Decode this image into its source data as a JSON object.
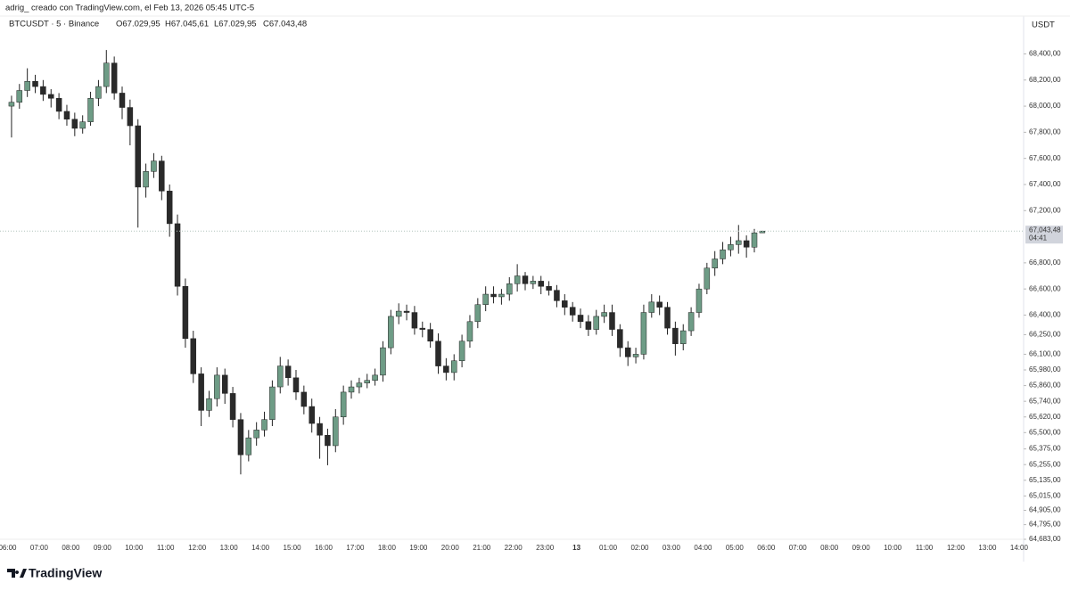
{
  "header": {
    "attribution": "adrig_ creado con TradingView.com, el Feb 13, 2026 05:45 UTC-5",
    "symbol": "BTCUSDT · 5 · Binance",
    "open": "O67.029,95",
    "high": "H67.045,61",
    "low": "L67.029,95",
    "close": "C67.043,48",
    "currency": "USDT",
    "last_price_label": "67,043,48",
    "countdown": "04:41",
    "logo": "TradingView"
  },
  "chart_data": {
    "type": "candlestick",
    "up_color": "#6e9c86",
    "down_color": "#2a2a2a",
    "wick_color": "#222222",
    "price_line_color": "#b0c4bb",
    "open": [
      68000,
      68030,
      68120,
      68190,
      68150,
      68090,
      68060,
      67960,
      67900,
      67830,
      67880,
      68060,
      68150,
      68330,
      68100,
      67990,
      67850,
      67380,
      67500,
      67580,
      67350,
      67100,
      66620,
      66220,
      65950,
      65670,
      65760,
      65940,
      65800,
      65600,
      65330,
      65460,
      65520,
      65600,
      65850,
      66010,
      65920,
      65810,
      65700,
      65570,
      65480,
      65400,
      65620,
      65810,
      65850,
      65880,
      65900,
      65940,
      66150,
      66390,
      66430,
      66420,
      66300,
      66290,
      66200,
      66010,
      65960,
      66050,
      66200,
      66350,
      66480,
      66560,
      66540,
      66560,
      66640,
      66700,
      66640,
      66660,
      66620,
      66590,
      66510,
      66460,
      66400,
      66350,
      66290,
      66390,
      66420,
      66290,
      66150,
      66080,
      66100,
      66420,
      66500,
      66460,
      66300,
      66180,
      66280,
      66420,
      66600,
      66760,
      66830,
      66900,
      66940,
      66970,
      66920,
      67029.95
    ],
    "high": [
      68080,
      68170,
      68290,
      68240,
      68200,
      68130,
      68100,
      68010,
      67950,
      67930,
      68110,
      68200,
      68430,
      68380,
      68150,
      68050,
      67900,
      67560,
      67640,
      67620,
      67400,
      67170,
      66680,
      66280,
      66000,
      65820,
      66000,
      65990,
      65850,
      65650,
      65520,
      65580,
      65660,
      65900,
      66080,
      66060,
      65980,
      65860,
      65760,
      65620,
      65530,
      65680,
      65860,
      65900,
      65920,
      65950,
      65990,
      66200,
      66440,
      66490,
      66480,
      66470,
      66350,
      66340,
      66260,
      66070,
      66100,
      66250,
      66400,
      66530,
      66620,
      66620,
      66600,
      66690,
      66790,
      66730,
      66700,
      66700,
      66660,
      66630,
      66560,
      66500,
      66450,
      66400,
      66440,
      66480,
      66480,
      66330,
      66200,
      66150,
      66480,
      66560,
      66550,
      66500,
      66350,
      66330,
      66460,
      66640,
      66800,
      66890,
      66960,
      67000,
      67090,
      67010,
      67060,
      67045.61
    ],
    "low": [
      67760,
      67980,
      68070,
      68100,
      68040,
      67990,
      67900,
      67850,
      67770,
      67790,
      67850,
      68000,
      68100,
      68050,
      67900,
      67700,
      67070,
      67300,
      67450,
      67280,
      67000,
      66550,
      66150,
      65880,
      65550,
      65620,
      65700,
      65720,
      65540,
      65180,
      65280,
      65400,
      65470,
      65550,
      65800,
      65860,
      65750,
      65640,
      65500,
      65300,
      65250,
      65350,
      65560,
      65760,
      65800,
      65840,
      65860,
      65890,
      66100,
      66330,
      66360,
      66250,
      66230,
      66150,
      65950,
      65900,
      65900,
      66000,
      66150,
      66300,
      66430,
      66490,
      66480,
      66510,
      66580,
      66590,
      66600,
      66560,
      66550,
      66460,
      66400,
      66350,
      66300,
      66240,
      66250,
      66340,
      66240,
      66080,
      66010,
      66030,
      66060,
      66380,
      66400,
      66250,
      66090,
      66130,
      66240,
      66380,
      66560,
      66700,
      66790,
      66850,
      66870,
      66840,
      66880,
      67029.95
    ],
    "close": [
      68030,
      68120,
      68190,
      68150,
      68090,
      68060,
      67960,
      67900,
      67830,
      67880,
      68060,
      68150,
      68330,
      68100,
      67990,
      67850,
      67380,
      67500,
      67580,
      67350,
      67100,
      66620,
      66220,
      65950,
      65670,
      65760,
      65940,
      65800,
      65600,
      65330,
      65460,
      65520,
      65600,
      65850,
      66010,
      65920,
      65810,
      65700,
      65570,
      65480,
      65400,
      65620,
      65810,
      65850,
      65880,
      65900,
      65940,
      66150,
      66390,
      66430,
      66420,
      66300,
      66290,
      66200,
      66010,
      65960,
      66050,
      66200,
      66350,
      66480,
      66560,
      66540,
      66560,
      66640,
      66700,
      66640,
      66660,
      66620,
      66590,
      66510,
      66460,
      66400,
      66350,
      66290,
      66390,
      66420,
      66290,
      66150,
      66080,
      66100,
      66420,
      66500,
      66460,
      66300,
      66180,
      66280,
      66420,
      66600,
      66760,
      66830,
      66900,
      66940,
      66970,
      66920,
      67029.95,
      67043.48
    ],
    "ylim": [
      64683,
      68690
    ],
    "yticks": [
      {
        "value": 68400,
        "label": "68,400,00"
      },
      {
        "value": 68200,
        "label": "68,200,00"
      },
      {
        "value": 68000,
        "label": "68,000,00"
      },
      {
        "value": 67800,
        "label": "67,800,00"
      },
      {
        "value": 67600,
        "label": "67,600,00"
      },
      {
        "value": 67400,
        "label": "67,400,00"
      },
      {
        "value": 67200,
        "label": "67,200,00"
      },
      {
        "value": 66800,
        "label": "66,800,00"
      },
      {
        "value": 66600,
        "label": "66,600,00"
      },
      {
        "value": 66400,
        "label": "66,400,00"
      },
      {
        "value": 66250,
        "label": "66,250,00"
      },
      {
        "value": 66100,
        "label": "66,100,00"
      },
      {
        "value": 65980,
        "label": "65,980,00"
      },
      {
        "value": 65860,
        "label": "65,860,00"
      },
      {
        "value": 65740,
        "label": "65,740,00"
      },
      {
        "value": 65620,
        "label": "65,620,00"
      },
      {
        "value": 65500,
        "label": "65,500,00"
      },
      {
        "value": 65375,
        "label": "65,375,00"
      },
      {
        "value": 65255,
        "label": "65,255,00"
      },
      {
        "value": 65135,
        "label": "65,135,00"
      },
      {
        "value": 65015,
        "label": "65,015,00"
      },
      {
        "value": 64905,
        "label": "64,905,00"
      },
      {
        "value": 64795,
        "label": "64,795,00"
      },
      {
        "value": 64683,
        "label": "64,683,00"
      }
    ],
    "xtick_labels": [
      "06:00",
      "07:00",
      "08:00",
      "09:00",
      "10:00",
      "11:00",
      "12:00",
      "13:00",
      "14:00",
      "15:00",
      "16:00",
      "17:00",
      "18:00",
      "19:00",
      "20:00",
      "21:00",
      "22:00",
      "23:00",
      "13",
      "01:00",
      "02:00",
      "03:00",
      "04:00",
      "05:00",
      "06:00",
      "07:00",
      "08:00",
      "09:00",
      "10:00",
      "11:00",
      "12:00",
      "13:00",
      "14:00"
    ]
  }
}
